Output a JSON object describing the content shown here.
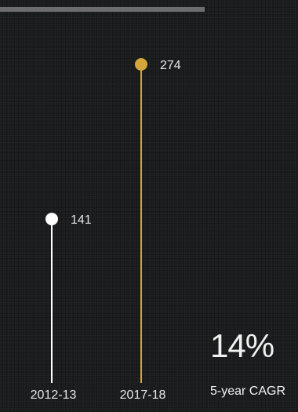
{
  "chart_data": {
    "type": "lollipop",
    "categories": [
      "2012-13",
      "2017-18"
    ],
    "values": [
      141,
      274
    ],
    "colors": [
      "#ffffff",
      "#d4a53c"
    ],
    "ylim": [
      0,
      274
    ],
    "title": "",
    "xlabel": "",
    "ylabel": "",
    "grid": false
  },
  "annotation": {
    "value": "14%",
    "label": "5-year CAGR"
  }
}
